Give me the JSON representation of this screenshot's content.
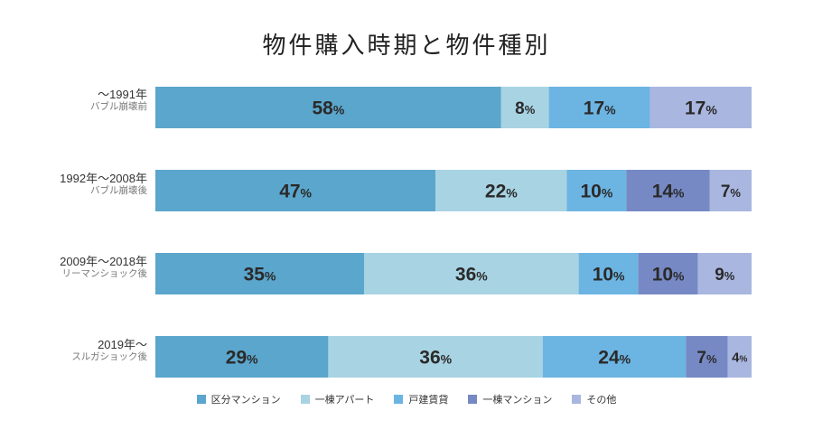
{
  "chart_data": {
    "type": "bar",
    "orientation": "horizontal",
    "stacked": true,
    "normalized": true,
    "title": "物件購入時期と物件種別",
    "categories": [
      {
        "era": "〜1991年",
        "sub": "バブル崩壊前"
      },
      {
        "era": "1992年〜2008年",
        "sub": "バブル崩壊後"
      },
      {
        "era": "2009年〜2018年",
        "sub": "リーマンショック後"
      },
      {
        "era": "2019年〜",
        "sub": "スルガショック後"
      }
    ],
    "series": [
      {
        "name": "区分マンション",
        "color": "#5ba6cc",
        "values": [
          58,
          47,
          35,
          29
        ]
      },
      {
        "name": "一棟アパート",
        "color": "#a8d3e3",
        "values": [
          8,
          22,
          36,
          36
        ]
      },
      {
        "name": "戸建賃貸",
        "color": "#6cb4e2",
        "values": [
          17,
          10,
          10,
          24
        ]
      },
      {
        "name": "一棟マンション",
        "color": "#7689c4",
        "values": [
          0,
          14,
          10,
          7
        ]
      },
      {
        "name": "その他",
        "color": "#a9b6e0",
        "values": [
          17,
          7,
          9,
          4
        ]
      }
    ],
    "unit": "%",
    "legend_position": "bottom"
  }
}
